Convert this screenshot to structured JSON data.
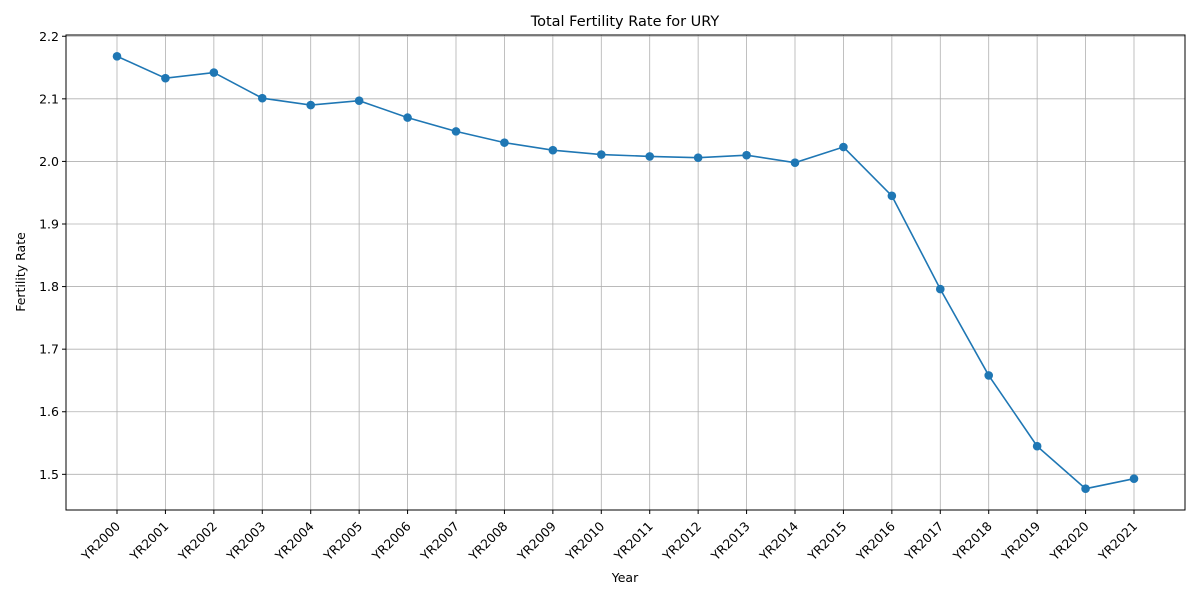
{
  "chart_data": {
    "type": "line",
    "title": "Total Fertility Rate for URY",
    "xlabel": "Year",
    "ylabel": "Fertility Rate",
    "categories": [
      "YR2000",
      "YR2001",
      "YR2002",
      "YR2003",
      "YR2004",
      "YR2005",
      "YR2006",
      "YR2007",
      "YR2008",
      "YR2009",
      "YR2010",
      "YR2011",
      "YR2012",
      "YR2013",
      "YR2014",
      "YR2015",
      "YR2016",
      "YR2017",
      "YR2018",
      "YR2019",
      "YR2020",
      "YR2021"
    ],
    "series": [
      {
        "values": [
          2.168,
          2.133,
          2.142,
          2.101,
          2.09,
          2.097,
          2.07,
          2.048,
          2.03,
          2.018,
          2.011,
          2.008,
          2.006,
          2.01,
          1.998,
          2.023,
          1.945,
          1.796,
          1.658,
          1.545,
          1.477,
          1.493
        ],
        "color": "#1f77b4",
        "marker": "circle"
      }
    ],
    "yticks": [
      1.5,
      1.6,
      1.7,
      1.8,
      1.9,
      2.0,
      2.1,
      2.2
    ],
    "ytick_labels": [
      "1.5",
      "1.6",
      "1.7",
      "1.8",
      "1.9",
      "2.0",
      "2.1",
      "2.2"
    ],
    "ylim": [
      1.443,
      2.202
    ],
    "grid": true,
    "xtick_rotation": 45
  }
}
